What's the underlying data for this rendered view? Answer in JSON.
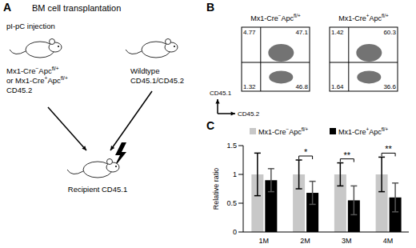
{
  "panel_a": {
    "panel_label": "A",
    "title": "BM cell transplantation",
    "injection": "pI-pC injection",
    "donor_lines": [
      [
        {
          "text": "Mx1-Cre"
        },
        {
          "text": "−",
          "sup": true
        },
        {
          "text": "Apc"
        },
        {
          "text": "fl/+",
          "sup": true
        }
      ],
      [
        {
          "text": "or Mx1-Cre"
        },
        {
          "text": "+",
          "sup": true
        },
        {
          "text": "Apc"
        },
        {
          "text": "fl/+",
          "sup": true
        }
      ],
      [
        {
          "text": "CD45.2"
        }
      ]
    ],
    "competitor_lines": [
      "Wildtype",
      "CD45.1/CD45.2"
    ],
    "recipient_lines": [
      "Recipient CD45.1"
    ]
  },
  "panel_b": {
    "panel_label": "B",
    "x_label": "CD45.2",
    "y_label": "CD45.1",
    "plots": [
      {
        "title": [
          {
            "text": "Mx1-Cre"
          },
          {
            "text": "−",
            "sup": true
          },
          {
            "text": "Apc"
          },
          {
            "text": "fl/+",
            "sup": true
          }
        ],
        "upper_left": 4.77,
        "upper_right": 47.1,
        "lower_left": 1.32,
        "lower_right": 46.8
      },
      {
        "title": [
          {
            "text": "Mx1-Cre"
          },
          {
            "text": "+",
            "sup": true
          },
          {
            "text": "Apc"
          },
          {
            "text": "fl/+",
            "sup": true
          }
        ],
        "upper_left": 1.42,
        "upper_right": 60.3,
        "lower_left": 1.64,
        "lower_right": 36.6
      }
    ]
  },
  "chart_data": {
    "type": "bar",
    "panel_label": "C",
    "y_label": "Relative ratio",
    "categories": [
      "1M",
      "2M",
      "3M",
      "4M"
    ],
    "series": [
      {
        "name": [
          {
            "text": "Mx1-Cre"
          },
          {
            "text": "−",
            "sup": true
          },
          {
            "text": "Apc"
          },
          {
            "text": "fl/+",
            "sup": true
          }
        ],
        "color": "#c8c8c8",
        "values": [
          1,
          1,
          1,
          1
        ],
        "errors": [
          0.37,
          0.25,
          0.2,
          0.3
        ]
      },
      {
        "name": [
          {
            "text": "Mx1-Cre"
          },
          {
            "text": "+",
            "sup": true
          },
          {
            "text": "Apc"
          },
          {
            "text": "fl/+",
            "sup": true
          }
        ],
        "color": "#000000",
        "values": [
          0.9,
          0.68,
          0.55,
          0.6
        ],
        "errors": [
          0.2,
          0.2,
          0.25,
          0.25
        ]
      }
    ],
    "significance": [
      null,
      "*",
      "**",
      "**"
    ],
    "ylim": [
      0,
      1.5
    ],
    "yticks": [
      0,
      0.5,
      1,
      1.5
    ],
    "grid": false,
    "legend": "top"
  }
}
